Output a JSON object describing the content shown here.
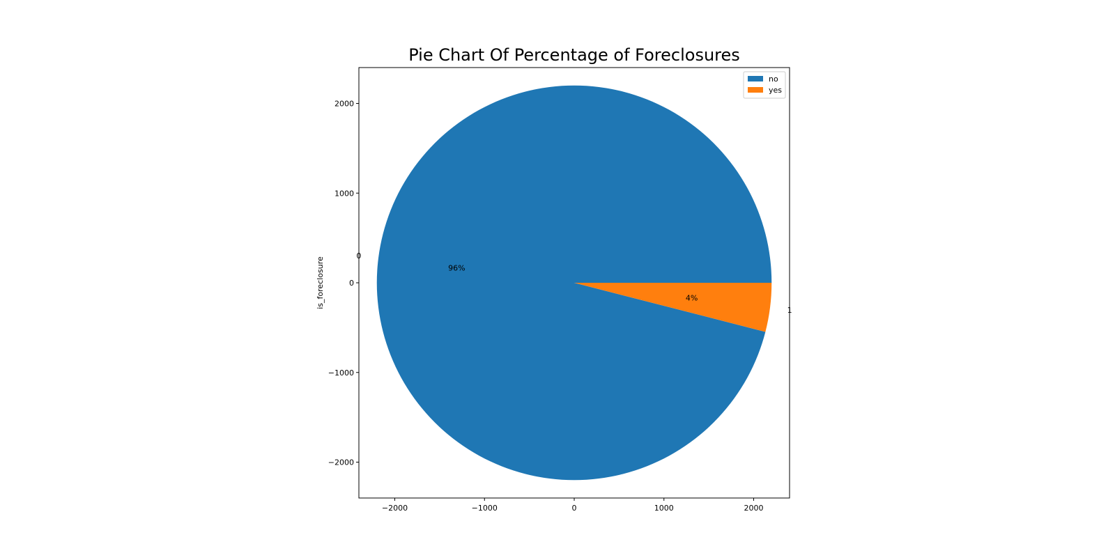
{
  "chart_data": {
    "type": "pie",
    "title": "Pie Chart Of Percentage of Foreclosures",
    "xlabel": "",
    "ylabel": "is_foreclosure",
    "categories": [
      "0",
      "1"
    ],
    "values": [
      96,
      4
    ],
    "percent_labels": [
      "96%",
      "4%"
    ],
    "legend": {
      "entries": [
        "no",
        "yes"
      ],
      "placement": "upper-right"
    },
    "colors": [
      "#1f77b4",
      "#ff7f0e"
    ],
    "radius": 2200,
    "xlim": [
      -2400,
      2400
    ],
    "ylim": [
      -2400,
      2400
    ],
    "xticks": [
      -2000,
      -1000,
      0,
      1000,
      2000
    ],
    "yticks": [
      -2000,
      -1000,
      0,
      1000,
      2000
    ],
    "xtick_labels": [
      "−2000",
      "−1000",
      "0",
      "1000",
      "2000"
    ],
    "ytick_labels": [
      "−2000",
      "−1000",
      "0",
      "1000",
      "2000"
    ],
    "grid": false
  }
}
